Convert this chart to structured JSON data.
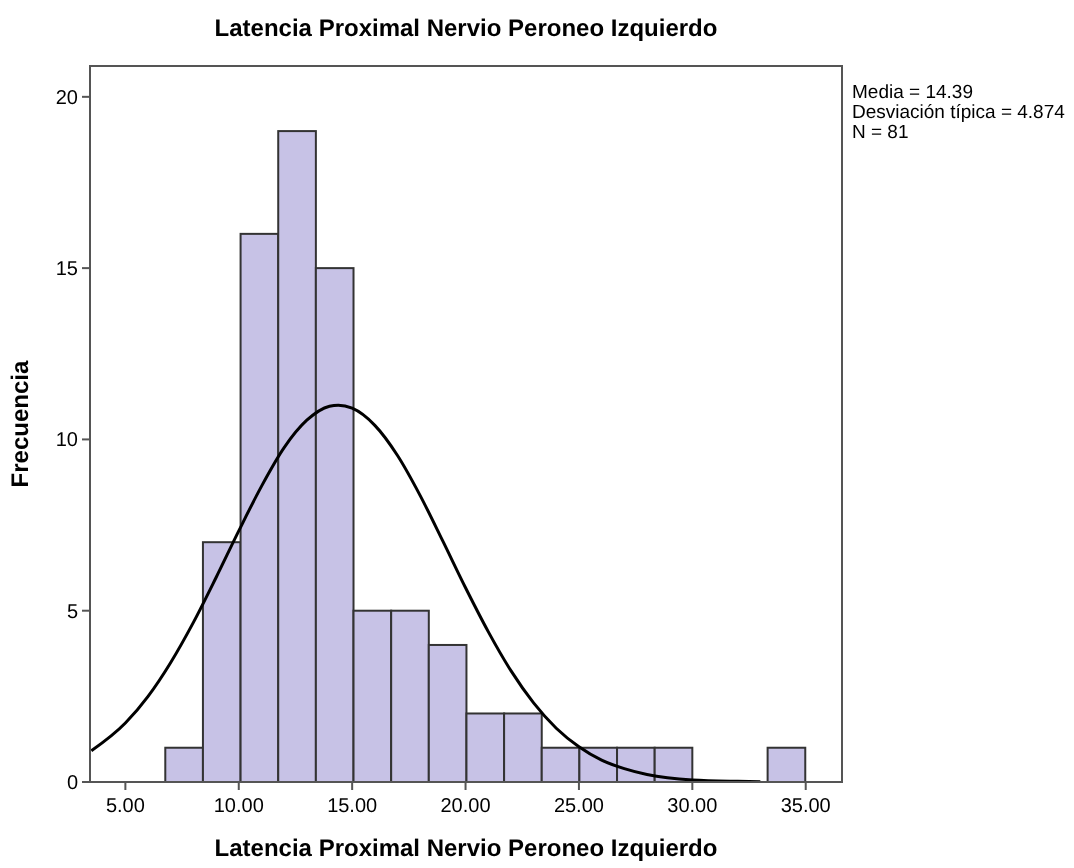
{
  "chart_data": {
    "type": "histogram",
    "title": "Latencia Proximal Nervio Peroneo Izquierdo",
    "xlabel": "Latencia Proximal Nervio Peroneo Izquierdo",
    "ylabel": "Frecuencia",
    "bins": [
      6.76,
      8.42,
      10.08,
      11.74,
      13.4,
      15.06,
      16.72,
      18.38,
      20.04,
      21.7,
      23.36,
      25.02,
      26.68,
      28.34,
      30.0,
      31.66,
      33.32,
      34.98
    ],
    "values": [
      1,
      7,
      16,
      19,
      15,
      5,
      5,
      4,
      2,
      2,
      1,
      1,
      1,
      1,
      0,
      0,
      1
    ],
    "color": "#c7c2e6",
    "series": [
      {
        "type": "line",
        "color": "#000000",
        "x": [
          3.5,
          5,
          6,
          7,
          8,
          9,
          10,
          11,
          12,
          13,
          14,
          14.39,
          15,
          16,
          17,
          18,
          19,
          20,
          21,
          22,
          23,
          24,
          25,
          26,
          27,
          28,
          30,
          32,
          33
        ],
        "values": [
          0.91,
          1.72,
          2.5,
          3.49,
          4.66,
          5.97,
          7.33,
          8.63,
          9.76,
          10.56,
          10.97,
          11.0,
          10.91,
          10.41,
          9.53,
          8.36,
          7.03,
          5.67,
          4.39,
          3.25,
          2.31,
          1.57,
          1.03,
          0.64,
          0.39,
          0.22,
          0.06,
          0.02,
          0.01
        ]
      }
    ],
    "xlim": [
      3.44,
      36.6
    ],
    "ylim": [
      0,
      20.9
    ],
    "xticks": [
      {
        "value": 5,
        "label": "5.00"
      },
      {
        "value": 10,
        "label": "10.00"
      },
      {
        "value": 15,
        "label": "15.00"
      },
      {
        "value": 20,
        "label": "20.00"
      },
      {
        "value": 25,
        "label": "25.00"
      },
      {
        "value": 30,
        "label": "30.00"
      },
      {
        "value": 35,
        "label": "35.00"
      }
    ],
    "yticks": [
      0,
      5,
      10,
      15,
      20
    ],
    "grid": false,
    "annotations": [
      "Media = 14.39",
      "Desviación típica = 4.874",
      "N = 81"
    ]
  }
}
